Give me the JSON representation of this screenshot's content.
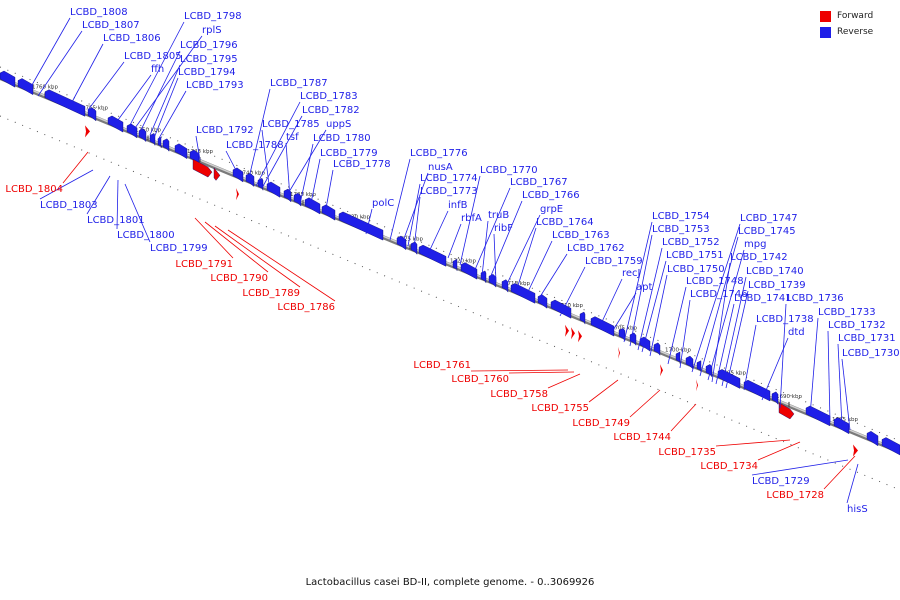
{
  "legend": {
    "forward_label": "Forward",
    "reverse_label": "Reverse",
    "forward_color": "#ee0000",
    "reverse_color": "#1f1fe8"
  },
  "caption": "Lactobacillus casei BD-II, complete genome. - 0..3069926",
  "ticks": [
    "1760 kbp",
    "1755 kbp",
    "1750 kbp",
    "1745 kbp",
    "1740 kbp",
    "1735 kbp",
    "1730 kbp",
    "1725 kbp",
    "1720 kbp",
    "1715 kbp",
    "1710 kbp",
    "1705 kbp",
    "1700 kbp",
    "1695 kbp",
    "1690 kbp",
    "1685 kbp"
  ],
  "reverse_labels": [
    "LCBD_1808",
    "LCBD_1807",
    "LCBD_1806",
    "LCBD_1805",
    "ffh",
    "LCBD_1798",
    "rplS",
    "LCBD_1796",
    "LCBD_1795",
    "LCBD_1794",
    "LCBD_1793",
    "LCBD_1792",
    "LCBD_1788",
    "LCBD_1787",
    "LCBD_1783",
    "LCBD_1782",
    "LCBD_1785",
    "uppS",
    "tsf",
    "LCBD_1780",
    "LCBD_1779",
    "LCBD_1778",
    "LCBD_1776",
    "nusA",
    "LCBD_1774",
    "LCBD_1773",
    "infB",
    "polC",
    "rbfA",
    "LCBD_1770",
    "LCBD_1767",
    "LCBD_1766",
    "truB",
    "ribF",
    "grpE",
    "LCBD_1764",
    "LCBD_1763",
    "LCBD_1762",
    "LCBD_1759",
    "recJ",
    "apt",
    "LCBD_1754",
    "LCBD_1753",
    "LCBD_1752",
    "LCBD_1751",
    "LCBD_1750",
    "LCBD_1748",
    "LCBD_1746",
    "LCBD_1747",
    "LCBD_1745",
    "mpg",
    "LCBD_1742",
    "LCBD_1740",
    "LCBD_1739",
    "LCBD_1741",
    "LCBD_1738",
    "dtd",
    "LCBD_1736",
    "LCBD_1733",
    "LCBD_1732",
    "LCBD_1731",
    "LCBD_1730",
    "LCBD_1803",
    "LCBD_1801",
    "LCBD_1800",
    "LCBD_1799",
    "LCBD_1729",
    "hisS"
  ],
  "forward_labels": [
    "LCBD_1804",
    "LCBD_1791",
    "LCBD_1790",
    "LCBD_1789",
    "LCBD_1786",
    "LCBD_1761",
    "LCBD_1760",
    "LCBD_1758",
    "LCBD_1755",
    "LCBD_1749",
    "LCBD_1744",
    "LCBD_1735",
    "LCBD_1734",
    "LCBD_1728"
  ]
}
